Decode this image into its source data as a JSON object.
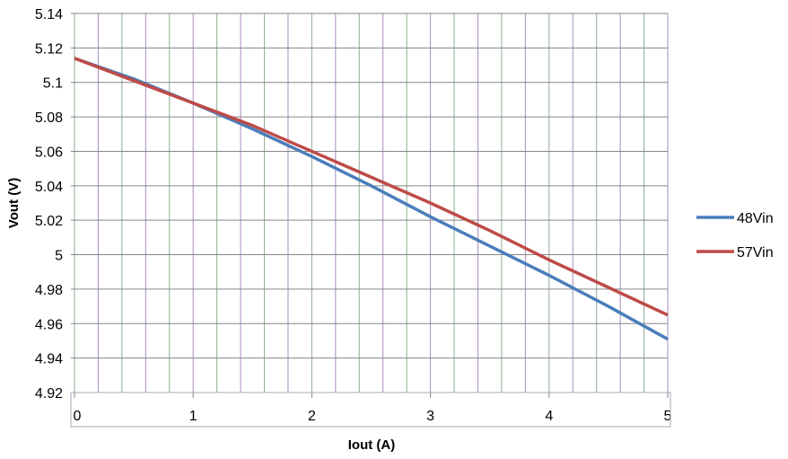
{
  "chart_data": {
    "type": "line",
    "title": "",
    "xlabel": "Iout (A)",
    "ylabel": "Vout (V)",
    "xlim": [
      0,
      5
    ],
    "ylim": [
      4.92,
      5.14
    ],
    "xticks": [
      "0",
      "1",
      "2",
      "3",
      "4",
      "5"
    ],
    "yticks": [
      "4.92",
      "4.94",
      "4.96",
      "4.98",
      "5",
      "5.02",
      "5.04",
      "5.06",
      "5.08",
      "5.1",
      "5.12",
      "5.14"
    ],
    "grid": true,
    "minor_x_grid_step": 0.2,
    "legend_position": "right",
    "x": [
      0,
      0.5,
      1,
      1.5,
      2,
      2.5,
      3,
      3.5,
      4,
      4.5,
      5
    ],
    "series": [
      {
        "name": "48Vin",
        "color": "#4a7ebb",
        "values": [
          5.114,
          5.102,
          5.088,
          5.073,
          5.057,
          5.04,
          5.022,
          5.005,
          4.988,
          4.97,
          4.951
        ]
      },
      {
        "name": "57Vin",
        "color": "#be4b48",
        "values": [
          5.114,
          5.101,
          5.088,
          5.075,
          5.06,
          5.045,
          5.03,
          5.014,
          4.997,
          4.981,
          4.965
        ]
      }
    ]
  }
}
